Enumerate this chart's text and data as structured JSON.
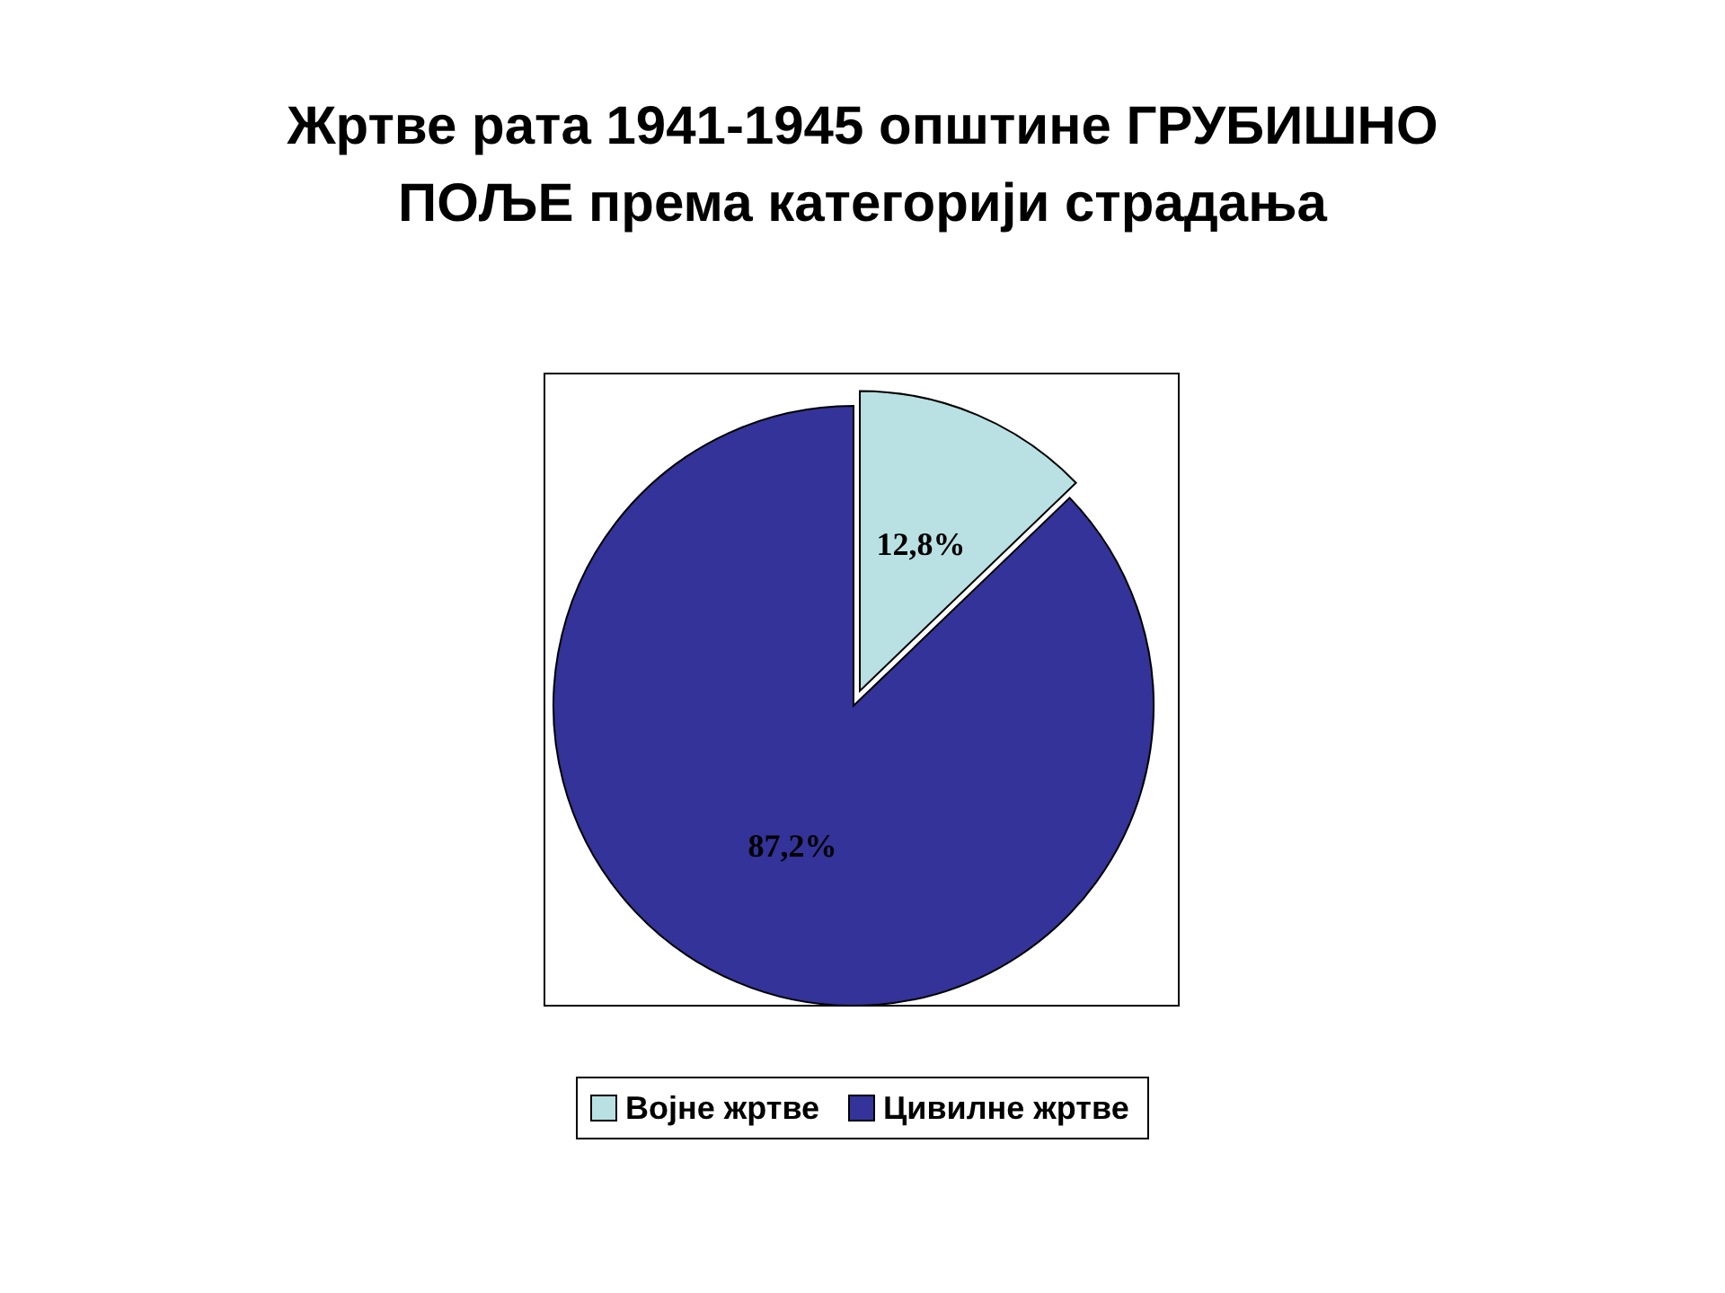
{
  "chart_data": {
    "type": "pie",
    "title": "Жртве рата 1941-1945 општине ГРУБИШНО ПОЉЕ према категорији страдања",
    "categories": [
      "Војне жртве",
      "Цивилне жртве"
    ],
    "values": [
      12.8,
      87.2
    ],
    "colors": [
      "#b9e1e3",
      "#333399"
    ],
    "value_labels": [
      "12,8%",
      "87,2%"
    ],
    "legend": "bottom"
  }
}
